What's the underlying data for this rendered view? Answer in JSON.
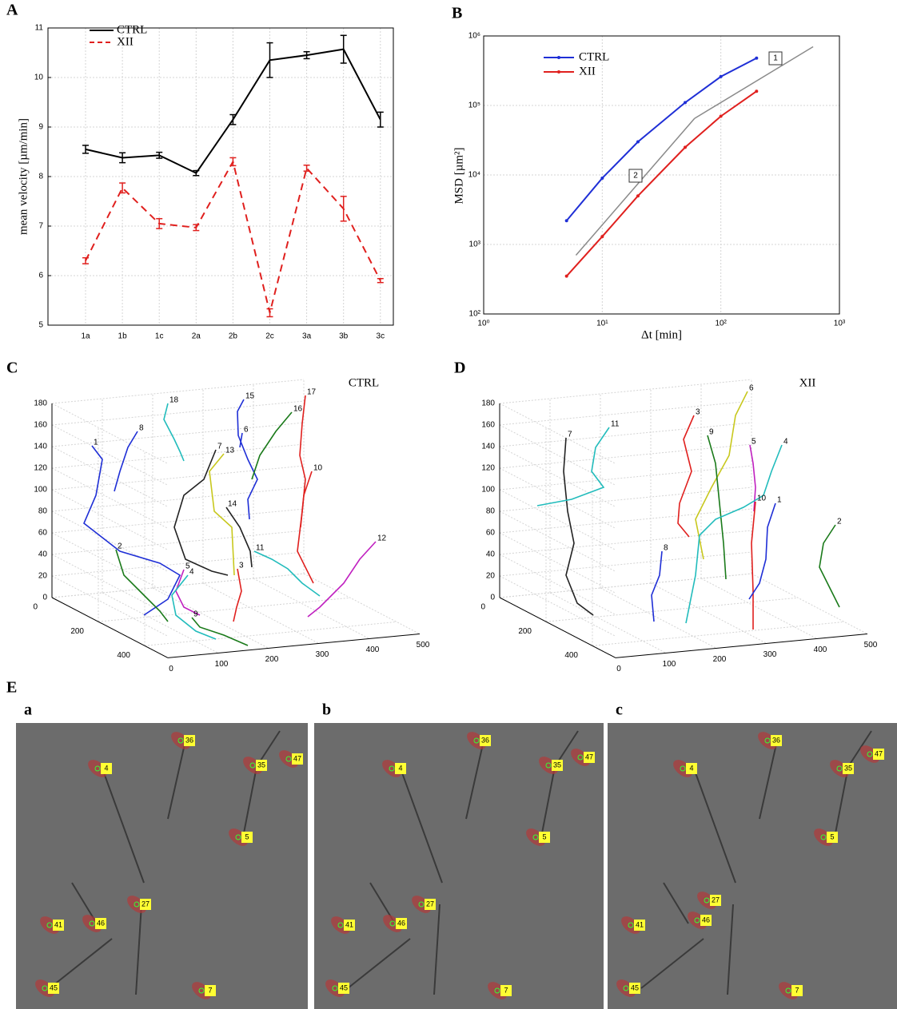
{
  "chart_data": [
    {
      "type": "line",
      "panel_label": "A",
      "ylabel": "mean velocity [µm/min]",
      "categories": [
        "1a",
        "1b",
        "1c",
        "2a",
        "2b",
        "2c",
        "3a",
        "3b",
        "3c"
      ],
      "ylim": [
        5,
        11
      ],
      "yticks": [
        5,
        6,
        7,
        8,
        9,
        10,
        11
      ],
      "grid": true,
      "series": [
        {
          "name": "CTRL",
          "color": "#000000",
          "dash": false,
          "values": [
            8.55,
            8.38,
            8.43,
            8.07,
            9.15,
            10.35,
            10.45,
            10.57,
            9.15
          ],
          "errors": [
            0.08,
            0.1,
            0.06,
            0.05,
            0.1,
            0.35,
            0.07,
            0.28,
            0.15
          ]
        },
        {
          "name": "XII",
          "color": "#e0201e",
          "dash": true,
          "values": [
            6.3,
            7.77,
            7.05,
            6.97,
            8.3,
            5.25,
            8.17,
            7.35,
            5.9
          ],
          "errors": [
            0.06,
            0.1,
            0.1,
            0.06,
            0.08,
            0.08,
            0.06,
            0.25,
            0.04
          ]
        }
      ]
    },
    {
      "type": "loglog",
      "panel_label": "B",
      "xlabel": "Δt [min]",
      "ylabel": "MSD [µm²]",
      "xlim": [
        1,
        1000
      ],
      "ylim": [
        100,
        1000000
      ],
      "grid": true,
      "xticks": [
        {
          "value": 1,
          "label": "10⁰"
        },
        {
          "value": 10,
          "label": "10¹"
        },
        {
          "value": 100,
          "label": "10²"
        },
        {
          "value": 1000,
          "label": "10³"
        }
      ],
      "yticks": [
        {
          "value": 100,
          "label": "10²"
        },
        {
          "value": 1000,
          "label": "10³"
        },
        {
          "value": 10000,
          "label": "10⁴"
        },
        {
          "value": 100000,
          "label": "10⁵"
        },
        {
          "value": 1000000,
          "label": "10⁶"
        }
      ],
      "x": [
        5,
        10,
        20,
        50,
        100,
        200
      ],
      "series": [
        {
          "name": "CTRL",
          "color": "#1f2fd6",
          "values": [
            2200,
            9000,
            30000,
            110000,
            260000,
            480000
          ]
        },
        {
          "name": "XII",
          "color": "#e0201e",
          "values": [
            350,
            1300,
            5000,
            25000,
            70000,
            160000
          ]
        }
      ],
      "reference_color": "#8a8a8a",
      "reference_lines": [
        {
          "label": "1",
          "x": [
            60,
            600
          ],
          "y": [
            65000,
            700000
          ]
        },
        {
          "label": "2",
          "x": [
            6,
            60
          ],
          "y": [
            700,
            65000
          ]
        }
      ]
    },
    {
      "type": "trajectory3d",
      "panel_label": "C",
      "title": "CTRL",
      "xlim": [
        0,
        500
      ],
      "ylim": [
        0,
        500
      ],
      "zlim": [
        0,
        180
      ],
      "xticks": [
        0,
        100,
        200,
        300,
        400,
        500
      ],
      "yticks": [
        0,
        200,
        400
      ],
      "zticks": [
        0,
        20,
        40,
        60,
        80,
        100,
        120,
        140,
        160,
        180
      ],
      "tracks": [
        {
          "label": "1",
          "color": "#1f2fd6"
        },
        {
          "label": "8",
          "color": "#1f2fd6"
        },
        {
          "label": "18",
          "color": "#22bcbc"
        },
        {
          "label": "15",
          "color": "#1f2fd6"
        },
        {
          "label": "17",
          "color": "#e0201e"
        },
        {
          "label": "10",
          "color": "#e0201e"
        },
        {
          "label": "16",
          "color": "#1a7a1a"
        },
        {
          "label": "6",
          "color": "#1f2fd6"
        },
        {
          "label": "7",
          "color": "#222222"
        },
        {
          "label": "13",
          "color": "#c8c81e"
        },
        {
          "label": "14",
          "color": "#222222"
        },
        {
          "label": "11",
          "color": "#22bcbc"
        },
        {
          "label": "2",
          "color": "#1a7a1a"
        },
        {
          "label": "5",
          "color": "#c020c0"
        },
        {
          "label": "4",
          "color": "#22bcbc"
        },
        {
          "label": "3",
          "color": "#e0201e"
        },
        {
          "label": "12",
          "color": "#c020c0"
        },
        {
          "label": "9",
          "color": "#1a7a1a"
        }
      ]
    },
    {
      "type": "trajectory3d",
      "panel_label": "D",
      "title": "XII",
      "xlim": [
        0,
        500
      ],
      "ylim": [
        0,
        500
      ],
      "zlim": [
        0,
        180
      ],
      "xticks": [
        0,
        100,
        200,
        300,
        400,
        500
      ],
      "yticks": [
        0,
        200,
        400
      ],
      "zticks": [
        0,
        20,
        40,
        60,
        80,
        100,
        120,
        140,
        160,
        180
      ],
      "tracks": [
        {
          "label": "7",
          "color": "#222222"
        },
        {
          "label": "11",
          "color": "#22bcbc"
        },
        {
          "label": "3",
          "color": "#e0201e"
        },
        {
          "label": "6",
          "color": "#c8c81e"
        },
        {
          "label": "9",
          "color": "#1a7a1a"
        },
        {
          "label": "5",
          "color": "#c020c0"
        },
        {
          "label": "4",
          "color": "#22bcbc"
        },
        {
          "label": "10",
          "color": "#e0201e"
        },
        {
          "label": "1",
          "color": "#1f2fd6"
        },
        {
          "label": "2",
          "color": "#1a7a1a"
        },
        {
          "label": "8",
          "color": "#1f2fd6"
        }
      ]
    }
  ],
  "micrographs": {
    "panel_label": "E",
    "frames": [
      {
        "label": "a",
        "cells": [
          "36",
          "47",
          "35",
          "4",
          "5",
          "27",
          "46",
          "41",
          "45",
          "7"
        ]
      },
      {
        "label": "b",
        "cells": [
          "36",
          "47",
          "35",
          "4",
          "5",
          "27",
          "46",
          "41",
          "45",
          "7"
        ]
      },
      {
        "label": "c",
        "cells": [
          "36",
          "47",
          "35",
          "4",
          "5",
          "27",
          "46",
          "41",
          "45",
          "7"
        ]
      }
    ]
  }
}
